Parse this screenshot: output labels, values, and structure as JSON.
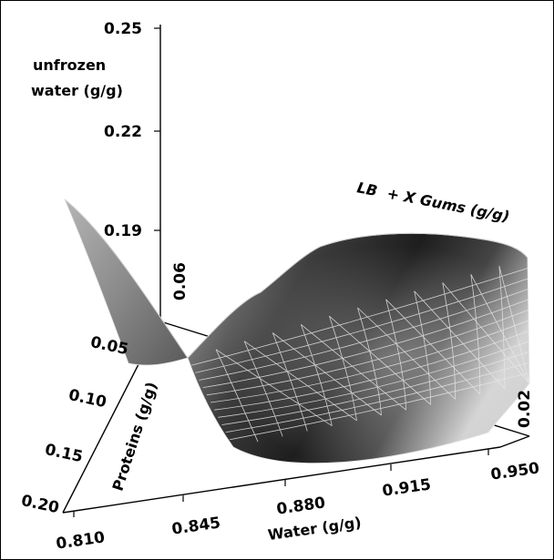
{
  "chart_data": {
    "type": "surface",
    "title": "",
    "zlabel": "unfrozen\nwater (g/g)",
    "xlabel": "Water (g/g)",
    "ylabel": "Proteins (g/g)",
    "wlabel": "LB  + X Gums (g/g)",
    "z_ticks": [
      "0.25",
      "0.22",
      "0.19"
    ],
    "x_ticks": [
      "0.810",
      "0.845",
      "0.880",
      "0.915",
      "0.950"
    ],
    "y_ticks": [
      "0.20",
      "0.15",
      "0.10",
      "0.05"
    ],
    "w_ticks": [
      "0.06",
      "0.02"
    ],
    "zlim": [
      0.16,
      0.25
    ],
    "xlim": [
      0.81,
      0.95
    ],
    "ylim": [
      0.05,
      0.2
    ],
    "grid": false,
    "surface_color": "#7a7a7a",
    "mesh_color": "#e6e6e6"
  }
}
